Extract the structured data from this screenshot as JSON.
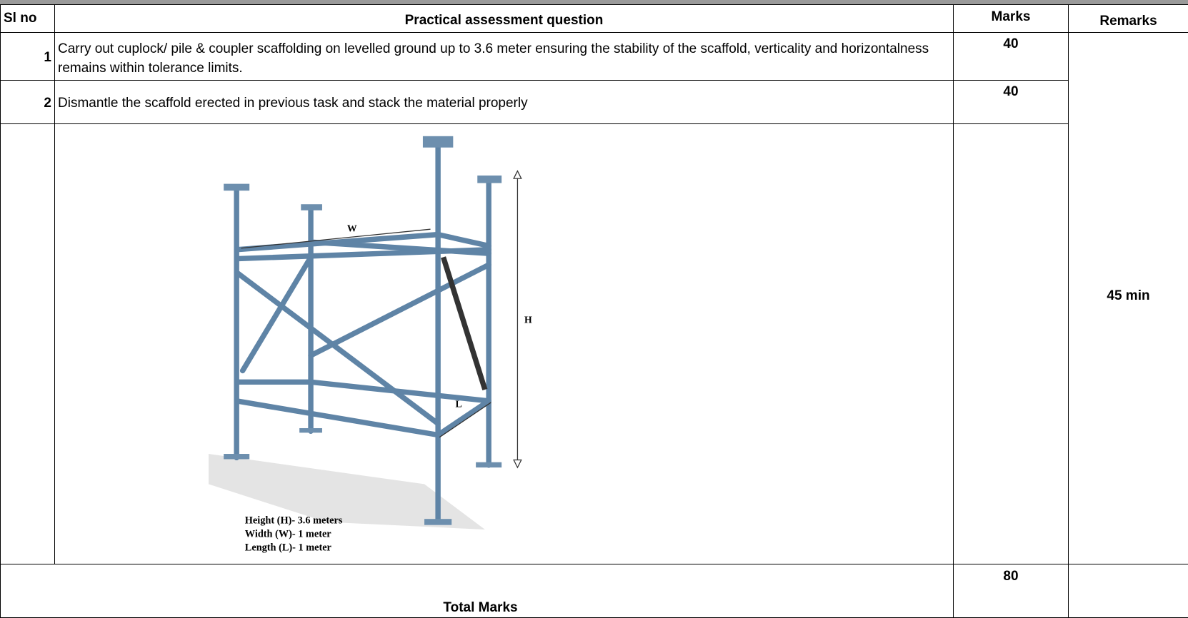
{
  "table": {
    "header": [
      "Sl no",
      "Practical assessment question",
      "Marks",
      "Remarks"
    ],
    "rows": [
      {
        "sl": "1",
        "question": "Carry out cuplock/ pile & coupler scaffolding on levelled ground up to 3.6 meter ensuring the stability of the scaffold, verticality and horizontalness remains within tolerance limits.",
        "marks": 40
      },
      {
        "sl": "2",
        "question": "Dismantle the scaffold erected in previous task and stack the material properly",
        "marks": 40
      }
    ],
    "remarks": "45 min",
    "figure": {
      "labels": {
        "width": "W",
        "height": "H",
        "length": "L"
      },
      "caption": [
        "Height (H)- 3.6 meters",
        "Width (W)- 1 meter",
        "Length (L)- 1 meter"
      ]
    },
    "total": {
      "label": "Total Marks",
      "marks": 80
    }
  }
}
